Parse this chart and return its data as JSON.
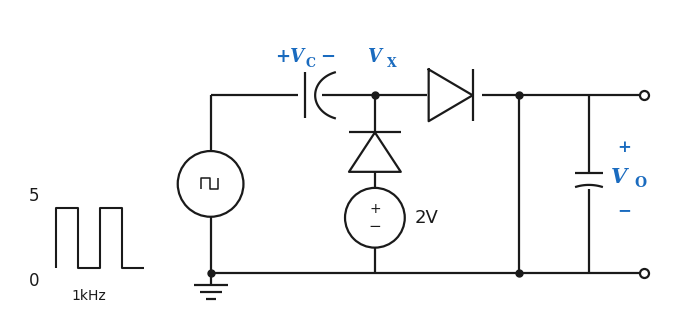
{
  "bg_color": "#ffffff",
  "line_color": "#1a1a1a",
  "blue_color": "#1a6bbf",
  "fig_width": 7.0,
  "fig_height": 3.25,
  "dpi": 100,
  "labels": {
    "voltage_2v": "2V",
    "freq": "1kHz",
    "val_5": "5",
    "val_0": "0"
  }
}
